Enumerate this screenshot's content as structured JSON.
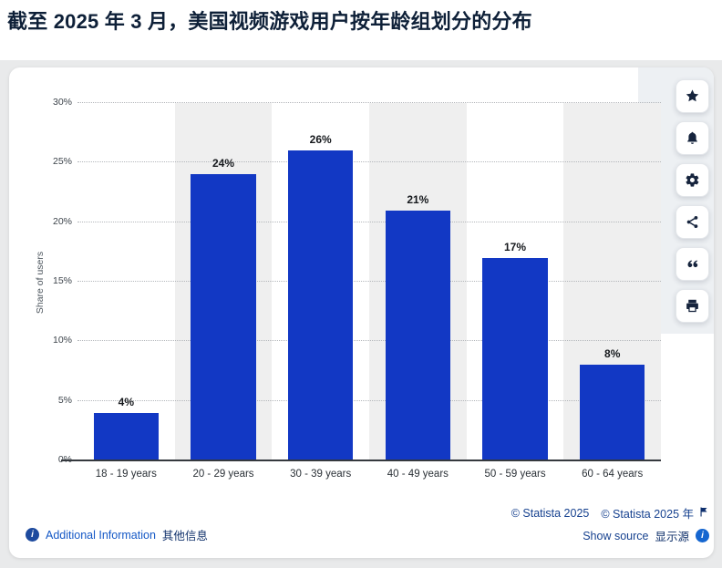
{
  "title": "截至 2025 年 3 月，美国视频游戏用户按年龄组划分的分布",
  "chart_data": {
    "type": "bar",
    "title": "截至 2025 年 3 月，美国视频游戏用户按年龄组划分的分布",
    "categories": [
      "18 - 19 years",
      "20 - 29 years",
      "30 - 39 years",
      "40 - 49 years",
      "50 - 59 years",
      "60 - 64 years"
    ],
    "values": [
      4,
      24,
      26,
      21,
      17,
      8
    ],
    "value_labels": [
      "4%",
      "24%",
      "26%",
      "21%",
      "17%",
      "8%"
    ],
    "xlabel": "",
    "ylabel": "Share of users",
    "ylim": [
      0,
      30
    ],
    "ytick_step": 5,
    "ytick_labels": [
      "0%",
      "5%",
      "10%",
      "15%",
      "20%",
      "25%",
      "30%"
    ],
    "grid": "horizontal dotted every 5%",
    "legend": "none",
    "bar_color": "#1238c4",
    "column_stripe_color": "#efefef"
  },
  "toolbar": {
    "items": [
      {
        "icon": "star-icon"
      },
      {
        "icon": "bell-icon"
      },
      {
        "icon": "gear-icon"
      },
      {
        "icon": "share-icon"
      },
      {
        "icon": "quote-icon"
      },
      {
        "icon": "print-icon"
      }
    ]
  },
  "footer": {
    "copyright": "© Statista 2025",
    "copyright_zh": "© Statista 2025 年",
    "additional_information": "Additional Information",
    "additional_information_zh": "其他信息",
    "show_source": "Show source",
    "show_source_zh": "显示源",
    "info_symbol": "i"
  },
  "colors": {
    "bar": "#1238c4",
    "title_text": "#0e2038",
    "page_background": "#e9eaeb",
    "card_background": "#ffffff",
    "link_blue": "#1458c6",
    "navy_text": "#16418f",
    "dark_navy_text": "#10316b",
    "icon_navy": "#16243d"
  }
}
